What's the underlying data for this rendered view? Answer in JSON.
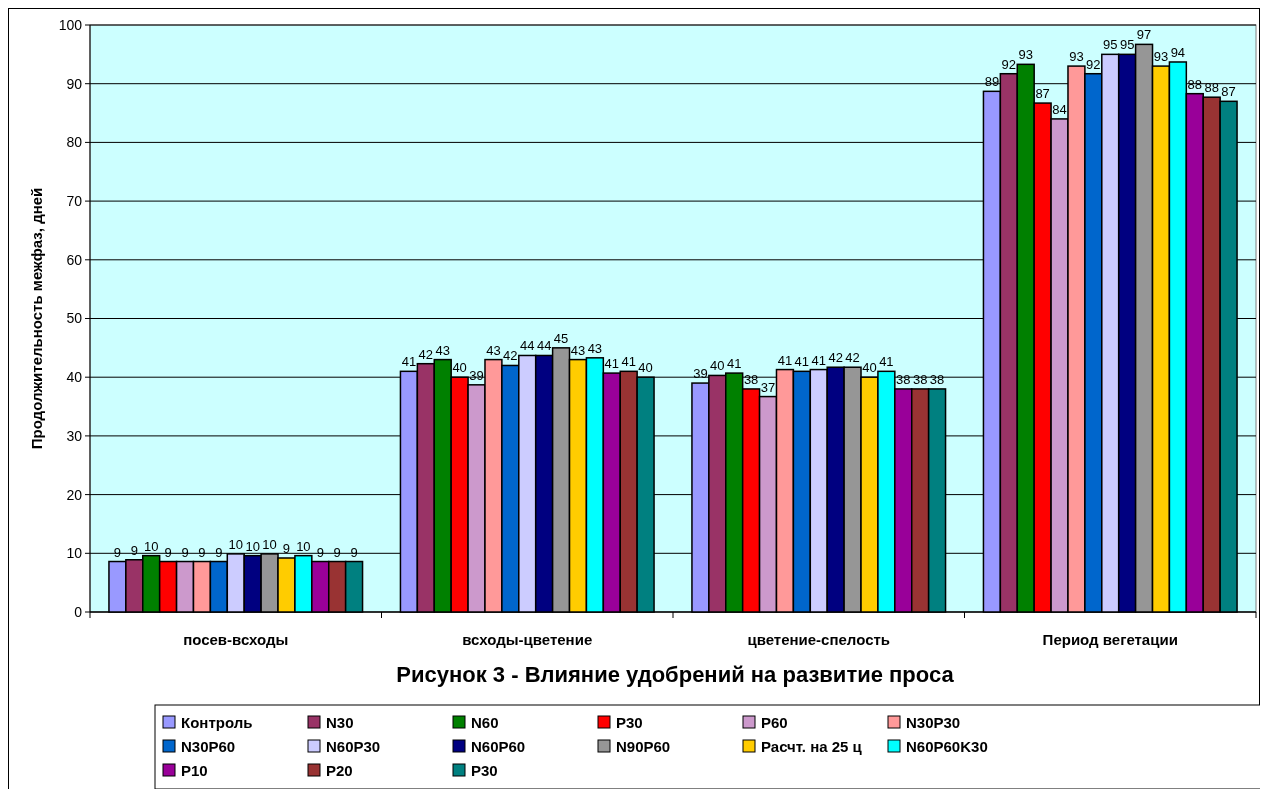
{
  "chart_data": {
    "type": "bar",
    "title": "Рисунок 3 - Влияние удобрений на развитие проса",
    "ylabel": "Продолжительность межфаз, дней",
    "categories": [
      "посев-всходы",
      "всходы-цветение",
      "цветение-спелость",
      "Период вегетации"
    ],
    "ylim": [
      0,
      100
    ],
    "yticks": [
      0,
      10,
      20,
      30,
      40,
      50,
      60,
      70,
      80,
      90,
      100
    ],
    "grid": "y",
    "legend": "bottom",
    "series": [
      {
        "name": "Контроль",
        "color": "#9999ff",
        "values": [
          8.6,
          41.0,
          39.0,
          88.7
        ],
        "value_labels": [
          "9",
          "41",
          "39",
          "89"
        ]
      },
      {
        "name": "N30",
        "color": "#993366",
        "values": [
          8.9,
          42.3,
          40.3,
          91.7
        ],
        "value_labels": [
          "9",
          "42",
          "40",
          "92"
        ]
      },
      {
        "name": "N60",
        "color": "#008000",
        "values": [
          9.6,
          43.0,
          40.7,
          93.3
        ],
        "value_labels": [
          "10",
          "43",
          "41",
          "93"
        ]
      },
      {
        "name": "P30",
        "color": "#ff0000",
        "values": [
          8.6,
          40.0,
          38.0,
          86.7
        ],
        "value_labels": [
          "9",
          "40",
          "38",
          "87"
        ]
      },
      {
        "name": "P60",
        "color": "#cc99cc",
        "values": [
          8.6,
          38.7,
          36.7,
          84.0
        ],
        "value_labels": [
          "9",
          "39",
          "37",
          "84"
        ]
      },
      {
        "name": "N30P30",
        "color": "#ff9999",
        "values": [
          8.6,
          43.0,
          41.3,
          93.0
        ],
        "value_labels": [
          "9",
          "43",
          "41",
          "93"
        ]
      },
      {
        "name": "N30P60",
        "color": "#0066cc",
        "values": [
          8.6,
          42.0,
          41.0,
          91.7
        ],
        "value_labels": [
          "9",
          "42",
          "41",
          "92"
        ]
      },
      {
        "name": "N60P30",
        "color": "#ccccff",
        "values": [
          9.9,
          43.7,
          41.3,
          95.0
        ],
        "value_labels": [
          "10",
          "44",
          "41",
          "95"
        ]
      },
      {
        "name": "N60P60",
        "color": "#000080",
        "values": [
          9.6,
          43.7,
          41.7,
          95.0
        ],
        "value_labels": [
          "10",
          "44",
          "42",
          "95"
        ]
      },
      {
        "name": "N90P60",
        "color": "#969696",
        "values": [
          9.9,
          45.0,
          41.7,
          96.7
        ],
        "value_labels": [
          "10",
          "45",
          "42",
          "97"
        ]
      },
      {
        "name": "Расчт. на 25 ц",
        "color": "#ffcc00",
        "values": [
          9.2,
          43.0,
          40.0,
          93.0
        ],
        "value_labels": [
          "9",
          "43",
          "40",
          "93"
        ]
      },
      {
        "name": "N60P60K30",
        "color": "#00ffff",
        "values": [
          9.6,
          43.3,
          41.0,
          93.7
        ],
        "value_labels": [
          "10",
          "43",
          "41",
          "94"
        ]
      },
      {
        "name": "P10",
        "color": "#990099",
        "values": [
          8.6,
          40.7,
          38.0,
          88.3
        ],
        "value_labels": [
          "9",
          "41",
          "38",
          "88"
        ]
      },
      {
        "name": "P20",
        "color": "#993333",
        "values": [
          8.6,
          41.0,
          38.0,
          87.7
        ],
        "value_labels": [
          "9",
          "41",
          "38",
          "88"
        ]
      },
      {
        "name": "P30",
        "color": "#008080",
        "values": [
          8.6,
          40.0,
          38.0,
          87.0
        ],
        "value_labels": [
          "9",
          "40",
          "38",
          "87"
        ]
      }
    ]
  }
}
